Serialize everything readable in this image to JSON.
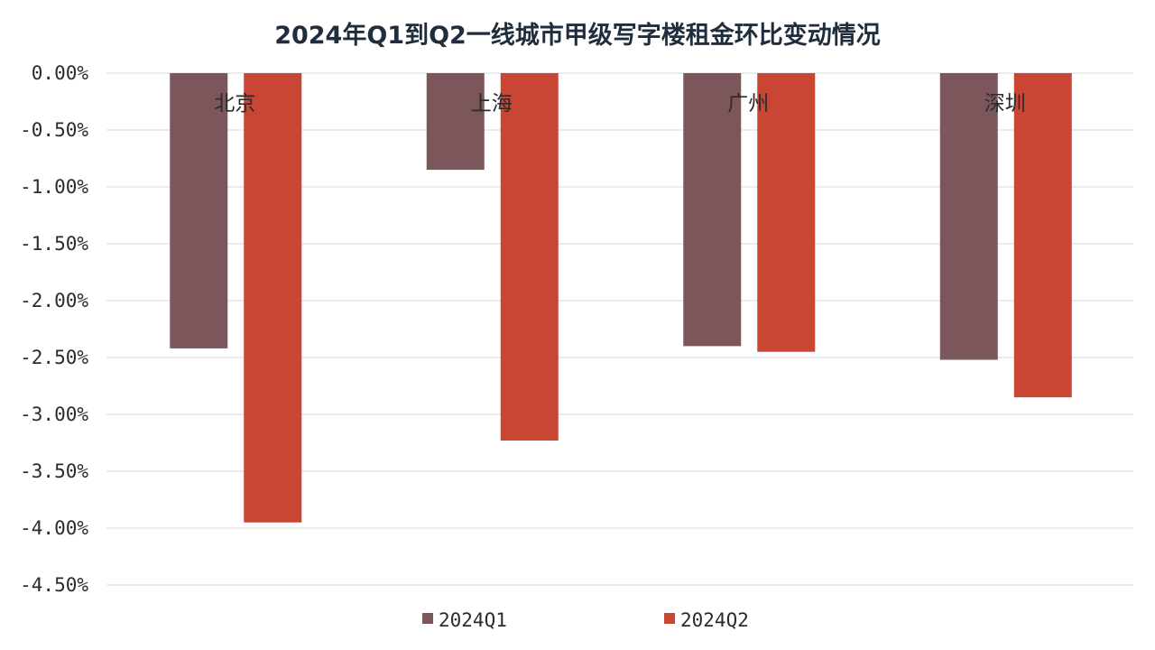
{
  "chart_data": {
    "type": "bar",
    "title": "2024年Q1到Q2一线城市甲级写字楼租金环比变动情况",
    "xlabel": "",
    "ylabel": "",
    "categories": [
      "北京",
      "上海",
      "广州",
      "深圳"
    ],
    "series": [
      {
        "name": "2024Q1",
        "color": "#7b575b",
        "values": [
          -2.42,
          -0.85,
          -2.4,
          -2.52
        ]
      },
      {
        "name": "2024Q2",
        "color": "#c94534",
        "values": [
          -3.95,
          -3.23,
          -2.45,
          -2.85
        ]
      }
    ],
    "ylim": [
      -4.5,
      0
    ],
    "yticks": [
      "0.00%",
      "-0.50%",
      "-1.00%",
      "-1.50%",
      "-2.00%",
      "-2.50%",
      "-3.00%",
      "-3.50%",
      "-4.00%",
      "-4.50%"
    ],
    "grid": true,
    "legend_position": "bottom"
  }
}
